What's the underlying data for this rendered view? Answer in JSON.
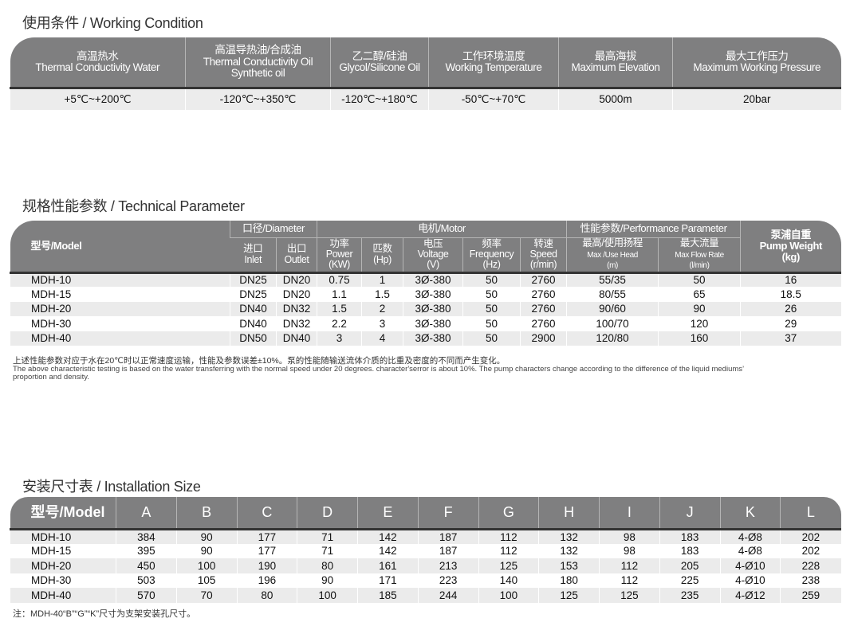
{
  "working_condition": {
    "title": "使用条件 / Working Condition",
    "headers": [
      [
        "高温热水",
        "Thermal Conductivity Water"
      ],
      [
        "高温导热油/合成油",
        "Thermal Conductivity Oil",
        "Synthetic oil"
      ],
      [
        "乙二醇/硅油",
        "Glycol/Silicone Oil"
      ],
      [
        "工作环境温度",
        "Working Temperature"
      ],
      [
        "最高海拔",
        "Maximum Elevation"
      ],
      [
        "最大工作压力",
        "Maximum Working Pressure"
      ]
    ],
    "values": [
      "+5℃~+200℃",
      "-120℃~+350℃",
      "-120℃~+180℃",
      "-50℃~+70℃",
      "5000m",
      "20bar"
    ]
  },
  "technical": {
    "title": "规格性能参数 / Technical Parameter",
    "model_header": "型号/Model",
    "groups": [
      "口径/Diameter",
      "电机/Motor",
      "性能参数/Performance Parameter"
    ],
    "weight_header": [
      "泵浦自重",
      "Pump Weight",
      "(kg)"
    ],
    "subheaders": [
      [
        "进口",
        "Inlet"
      ],
      [
        "出口",
        "Outlet"
      ],
      [
        "功率",
        "Power",
        "(KW)"
      ],
      [
        "匹数",
        "(Hp)"
      ],
      [
        "电压",
        "Voltage",
        "(V)"
      ],
      [
        "频率",
        "Frequency",
        "(Hz)"
      ],
      [
        "转速",
        "Speed",
        "(r/min)"
      ],
      [
        "最高/使用扬程",
        "Max /Use Head",
        "(m)"
      ],
      [
        "最大流量",
        "Max Flow Rate",
        "(l/min)"
      ]
    ],
    "rows": [
      [
        "MDH-10",
        "DN25",
        "DN20",
        "0.75",
        "1",
        "3Ø-380",
        "50",
        "2760",
        "55/35",
        "50",
        "16"
      ],
      [
        "MDH-15",
        "DN25",
        "DN20",
        "1.1",
        "1.5",
        "3Ø-380",
        "50",
        "2760",
        "80/55",
        "65",
        "18.5"
      ],
      [
        "MDH-20",
        "DN40",
        "DN32",
        "1.5",
        "2",
        "3Ø-380",
        "50",
        "2760",
        "90/60",
        "90",
        "26"
      ],
      [
        "MDH-30",
        "DN40",
        "DN32",
        "2.2",
        "3",
        "3Ø-380",
        "50",
        "2760",
        "100/70",
        "120",
        "29"
      ],
      [
        "MDH-40",
        "DN50",
        "DN40",
        "3",
        "4",
        "3Ø-380",
        "50",
        "2900",
        "120/80",
        "160",
        "37"
      ]
    ],
    "note_cn": "上述性能参数对应于水在20℃时以正常速度运输，性能及参数误差±10%。泵的性能随输送流体介质的比重及密度的不同而产生变化。",
    "note_en": "The above characteristic testing is based on the water transferring with the normal speed under 20 degrees.  character'serror is about 10%. The pump characters change according to the difference of the liquid mediums’ proportion and density."
  },
  "installation": {
    "title": "安装尺寸表 / Installation Size",
    "headers": [
      "型号/Model",
      "A",
      "B",
      "C",
      "D",
      "E",
      "F",
      "G",
      "H",
      "I",
      "J",
      "K",
      "L"
    ],
    "rows": [
      [
        "MDH-10",
        "384",
        "90",
        "177",
        "71",
        "142",
        "187",
        "112",
        "132",
        "98",
        "183",
        "4-Ø8",
        "202"
      ],
      [
        "MDH-15",
        "395",
        "90",
        "177",
        "71",
        "142",
        "187",
        "112",
        "132",
        "98",
        "183",
        "4-Ø8",
        "202"
      ],
      [
        "MDH-20",
        "450",
        "100",
        "190",
        "80",
        "161",
        "213",
        "125",
        "153",
        "112",
        "205",
        "4-Ø10",
        "228"
      ],
      [
        "MDH-30",
        "503",
        "105",
        "196",
        "90",
        "171",
        "223",
        "140",
        "180",
        "112",
        "225",
        "4-Ø10",
        "238"
      ],
      [
        "MDH-40",
        "570",
        "70",
        "80",
        "100",
        "185",
        "244",
        "100",
        "125",
        "125",
        "235",
        "4-Ø12",
        "259"
      ]
    ],
    "note": "注：MDH-40“B”“G”“K”尺寸为支架安装孔尺寸。"
  }
}
